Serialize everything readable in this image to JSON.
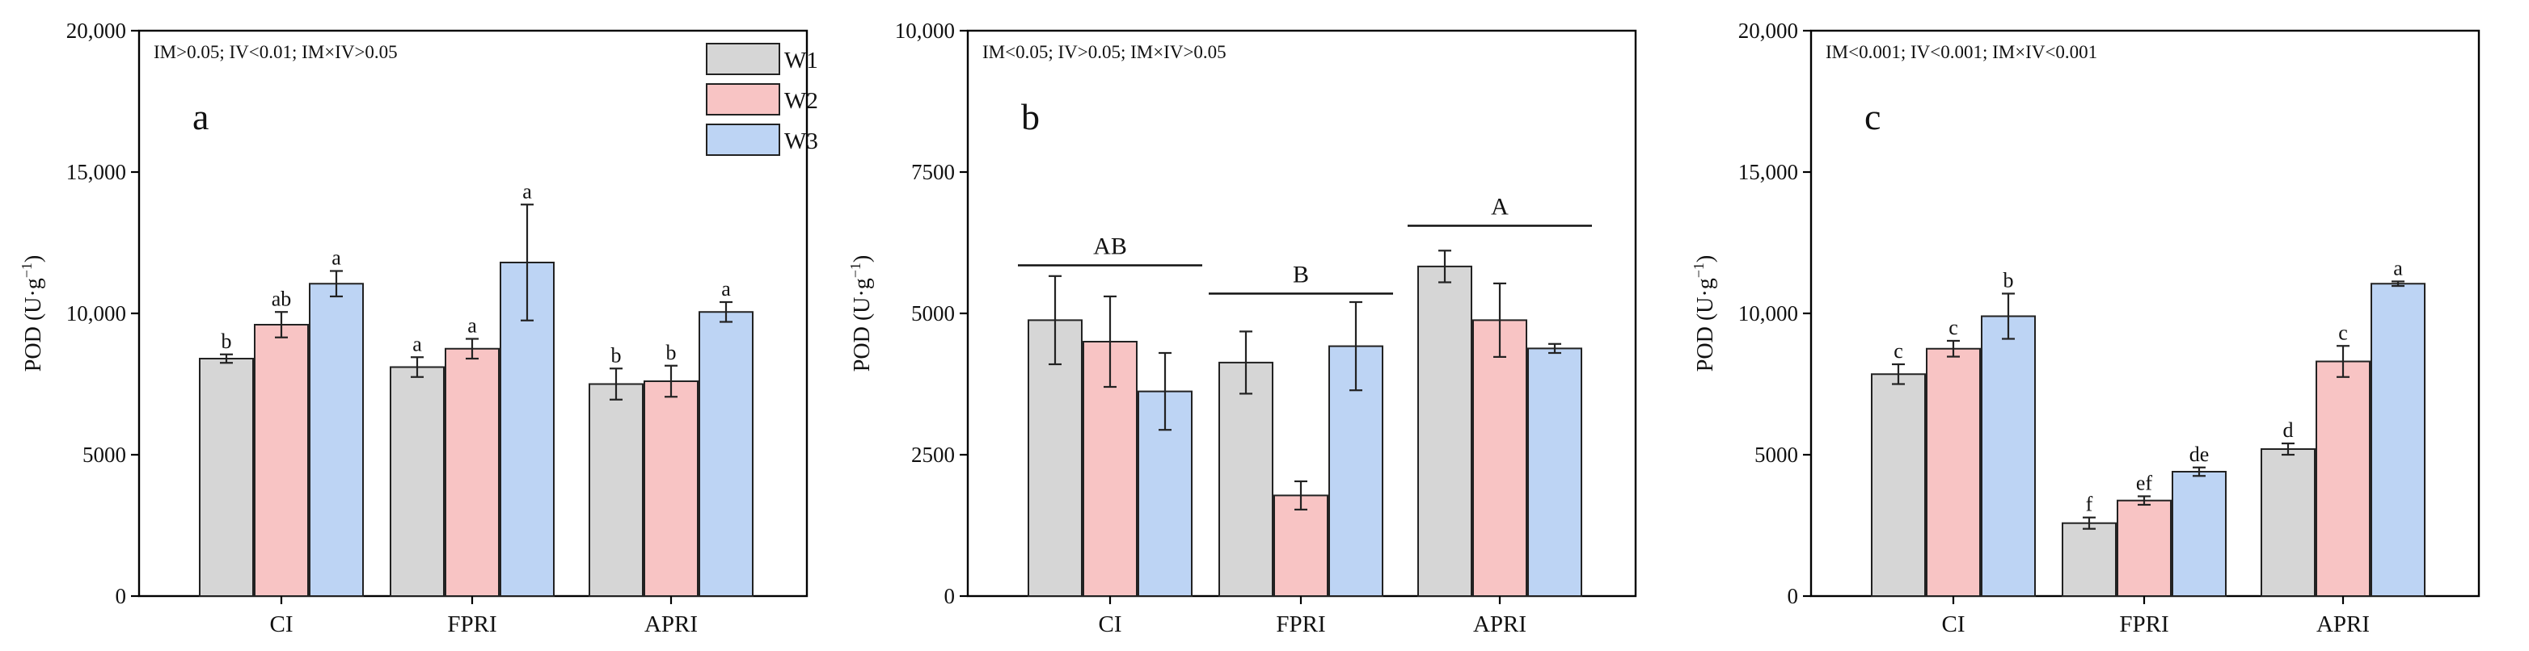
{
  "legend": [
    {
      "name": "W1",
      "color": "#d6d6d6"
    },
    {
      "name": "W2",
      "color": "#f8c4c4"
    },
    {
      "name": "W3",
      "color": "#bdd4f4"
    }
  ],
  "chart_data": [
    {
      "type": "bar",
      "panel": "a",
      "title": "",
      "note": "IM>0.05; IV<0.01; IM×IV>0.05",
      "xlabel": "",
      "ylabel_main": "POD (U·g",
      "ylabel_sup": "−1",
      "ylabel_close": ")",
      "ylim": [
        0,
        20000
      ],
      "yticks": [
        0,
        5000,
        10000,
        15000,
        20000
      ],
      "ytick_labels": [
        "0",
        "5000",
        "10,000",
        "15,000",
        "20,000"
      ],
      "categories": [
        "CI",
        "FPRI",
        "APRI"
      ],
      "series": [
        {
          "name": "W1",
          "values": [
            8400,
            8100,
            7500
          ],
          "errors": [
            150,
            350,
            550
          ],
          "labels": [
            "b",
            "a",
            "b"
          ]
        },
        {
          "name": "W2",
          "values": [
            9600,
            8750,
            7600
          ],
          "errors": [
            450,
            350,
            550
          ],
          "labels": [
            "ab",
            "a",
            "b"
          ]
        },
        {
          "name": "W3",
          "values": [
            11050,
            11800,
            10050
          ],
          "errors": [
            450,
            2050,
            350
          ],
          "labels": [
            "a",
            "a",
            "a"
          ]
        }
      ],
      "group_labels": []
    },
    {
      "type": "bar",
      "panel": "b",
      "title": "",
      "note": "IM<0.05; IV>0.05; IM×IV>0.05",
      "xlabel": "",
      "ylabel_main": "POD (U·g",
      "ylabel_sup": "−1",
      "ylabel_close": ")",
      "ylim": [
        0,
        10000
      ],
      "yticks": [
        0,
        2500,
        5000,
        7500,
        10000
      ],
      "ytick_labels": [
        "0",
        "2500",
        "5000",
        "7500",
        "10,000"
      ],
      "categories": [
        "CI",
        "FPRI",
        "APRI"
      ],
      "series": [
        {
          "name": "W1",
          "values": [
            4880,
            4130,
            5830
          ],
          "errors": [
            780,
            550,
            280
          ],
          "labels": [
            "",
            "",
            ""
          ]
        },
        {
          "name": "W2",
          "values": [
            4500,
            1780,
            4880
          ],
          "errors": [
            800,
            250,
            650
          ],
          "labels": [
            "",
            "",
            ""
          ]
        },
        {
          "name": "W3",
          "values": [
            3620,
            4420,
            4380
          ],
          "errors": [
            680,
            780,
            80
          ],
          "labels": [
            "",
            "",
            ""
          ]
        }
      ],
      "group_labels": [
        {
          "label": "AB",
          "y": 5850
        },
        {
          "label": "B",
          "y": 5350
        },
        {
          "label": "A",
          "y": 6550
        }
      ]
    },
    {
      "type": "bar",
      "panel": "c",
      "title": "",
      "note": "IM<0.001; IV<0.001; IM×IV<0.001",
      "xlabel": "",
      "ylabel_main": "POD (U·g",
      "ylabel_sup": "−1",
      "ylabel_close": ")",
      "ylim": [
        0,
        20000
      ],
      "yticks": [
        0,
        5000,
        10000,
        15000,
        20000
      ],
      "ytick_labels": [
        "0",
        "5000",
        "10,000",
        "15,000",
        "20,000"
      ],
      "categories": [
        "CI",
        "FPRI",
        "APRI"
      ],
      "series": [
        {
          "name": "W1",
          "values": [
            7850,
            2580,
            5200
          ],
          "errors": [
            350,
            200,
            200
          ],
          "labels": [
            "c",
            "f",
            "d"
          ]
        },
        {
          "name": "W2",
          "values": [
            8750,
            3380,
            8300
          ],
          "errors": [
            280,
            150,
            550
          ],
          "labels": [
            "c",
            "ef",
            "c"
          ]
        },
        {
          "name": "W3",
          "values": [
            9900,
            4400,
            11050
          ],
          "errors": [
            800,
            150,
            80
          ],
          "labels": [
            "b",
            "de",
            "a"
          ]
        }
      ],
      "group_labels": []
    }
  ]
}
